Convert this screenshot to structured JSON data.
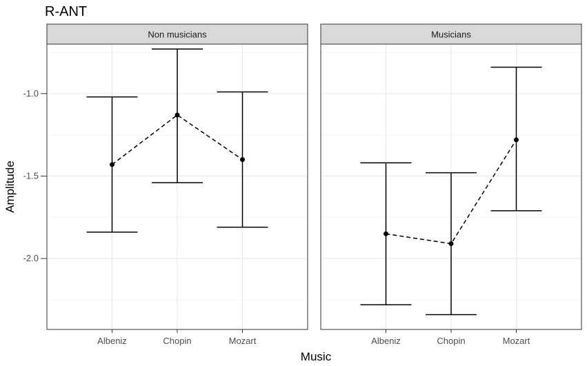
{
  "chart_data": {
    "type": "line",
    "title": "R-ANT",
    "xlabel": "Music",
    "ylabel": "Amplitude",
    "categories": [
      "Albeniz",
      "Chopin",
      "Mozart"
    ],
    "ylim": [
      -2.43,
      -0.7
    ],
    "yticks": [
      -1.0,
      -1.5,
      -2.0
    ],
    "ytick_labels": [
      "-1.0",
      "-1.5",
      "-2.0"
    ],
    "grid": true,
    "panels": [
      {
        "label": "Non musicians",
        "mean": [
          -1.43,
          -1.13,
          -1.4
        ],
        "lower": [
          -1.84,
          -1.54,
          -1.81
        ],
        "upper": [
          -1.02,
          -0.73,
          -0.99
        ]
      },
      {
        "label": "Musicians",
        "mean": [
          -1.85,
          -1.91,
          -1.28
        ],
        "lower": [
          -2.28,
          -2.34,
          -1.71
        ],
        "upper": [
          -1.42,
          -1.48,
          -0.84
        ]
      }
    ],
    "style": {
      "strip_fill": "#d9d9d9",
      "panel_border": "#333333",
      "grid_major": "#ebebeb",
      "grid_minor": "#f5f5f5",
      "line_color": "#000000"
    }
  }
}
